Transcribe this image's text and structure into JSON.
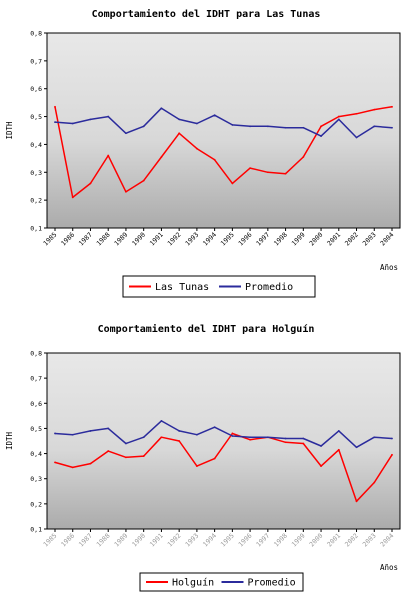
{
  "chart_data": [
    {
      "type": "line",
      "title": "Comportamiento del IDHT para Las Tunas",
      "xlabel": "Años",
      "ylabel": "IDTH",
      "ylim": [
        0.1,
        0.8
      ],
      "yticks": [
        "0,1",
        "0,2",
        "0,3",
        "0,4",
        "0,5",
        "0,6",
        "0,7",
        "0,8"
      ],
      "categories": [
        "1985",
        "1986",
        "1987",
        "1988",
        "1989",
        "1990",
        "1991",
        "1992",
        "1993",
        "1994",
        "1995",
        "1996",
        "1997",
        "1998",
        "1999",
        "2000",
        "2001",
        "2002",
        "2003",
        "2004"
      ],
      "x_tick_color": "#000000",
      "legend_position": "bottom",
      "series": [
        {
          "name": "Las Tunas",
          "color": "#ff0000",
          "values": [
            0.535,
            0.21,
            0.26,
            0.36,
            0.23,
            0.27,
            0.355,
            0.44,
            0.385,
            0.345,
            0.26,
            0.315,
            0.3,
            0.295,
            0.355,
            0.465,
            0.5,
            0.51,
            0.525,
            0.535
          ]
        },
        {
          "name": "Promedio",
          "color": "#2b2b9c",
          "values": [
            0.48,
            0.475,
            0.49,
            0.5,
            0.44,
            0.465,
            0.53,
            0.49,
            0.475,
            0.505,
            0.47,
            0.465,
            0.465,
            0.46,
            0.46,
            0.43,
            0.49,
            0.425,
            0.465,
            0.46
          ]
        }
      ]
    },
    {
      "type": "line",
      "title": "Comportamiento del IDHT para Holguín",
      "xlabel": "Años",
      "ylabel": "IDTH",
      "ylim": [
        0.1,
        0.8
      ],
      "yticks": [
        "0,1",
        "0,2",
        "0,3",
        "0,4",
        "0,5",
        "0,6",
        "0,7",
        "0,8"
      ],
      "categories": [
        "1985",
        "1986",
        "1987",
        "1988",
        "1989",
        "1990",
        "1991",
        "1992",
        "1993",
        "1994",
        "1995",
        "1996",
        "1997",
        "1998",
        "1999",
        "2000",
        "2001",
        "2002",
        "2003",
        "2004"
      ],
      "x_tick_color": "#9a9a9a",
      "legend_position": "bottom",
      "series": [
        {
          "name": "Holguín",
          "color": "#ff0000",
          "values": [
            0.365,
            0.345,
            0.36,
            0.41,
            0.385,
            0.39,
            0.465,
            0.45,
            0.35,
            0.38,
            0.48,
            0.455,
            0.465,
            0.445,
            0.44,
            0.35,
            0.415,
            0.21,
            0.285,
            0.395
          ]
        },
        {
          "name": "Promedio",
          "color": "#2b2b9c",
          "values": [
            0.48,
            0.475,
            0.49,
            0.5,
            0.44,
            0.465,
            0.53,
            0.49,
            0.475,
            0.505,
            0.47,
            0.465,
            0.465,
            0.46,
            0.46,
            0.43,
            0.49,
            0.425,
            0.465,
            0.46
          ]
        }
      ]
    }
  ]
}
